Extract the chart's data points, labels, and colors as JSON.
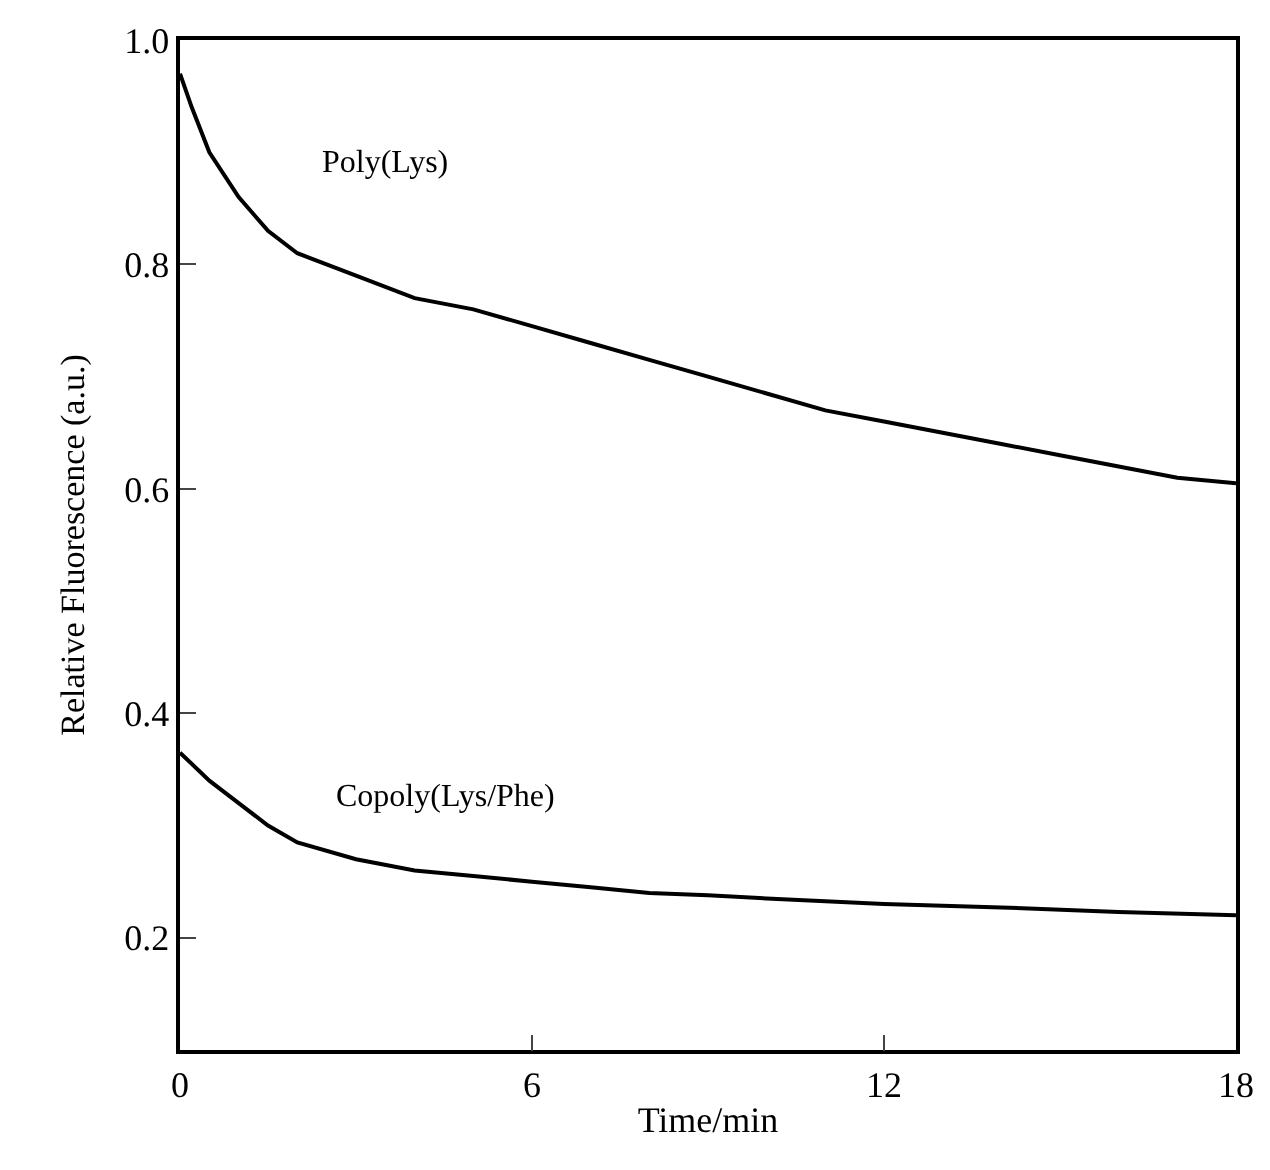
{
  "chart_data": {
    "type": "line",
    "xlabel": "Time/min",
    "ylabel": "Relative Fluorescence (a.u.)",
    "xlim": [
      0,
      18
    ],
    "xticks": [
      0,
      6,
      12,
      18
    ],
    "ylim": [
      0.1,
      1.0
    ],
    "yticks": [
      0.2,
      0.4,
      0.6,
      0.8,
      {
        "value": 1.0,
        "label": "1.0"
      }
    ],
    "marker": "none",
    "line_style": "solid",
    "series": [
      {
        "name": "Poly(Lys)",
        "color": "#000000",
        "x": [
          0,
          0.2,
          0.5,
          1,
          1.5,
          2,
          3,
          4,
          5,
          6,
          7,
          8,
          9,
          10,
          11,
          12,
          13,
          14,
          15,
          16,
          17,
          18
        ],
        "values": [
          0.97,
          0.94,
          0.9,
          0.86,
          0.83,
          0.81,
          0.79,
          0.77,
          0.76,
          0.745,
          0.73,
          0.715,
          0.7,
          0.685,
          0.67,
          0.66,
          0.65,
          0.64,
          0.63,
          0.62,
          0.61,
          0.605
        ]
      },
      {
        "name": "Copoly(Lys/Phe)",
        "color": "#000000",
        "x": [
          0,
          0.5,
          1,
          1.5,
          2,
          3,
          4,
          5,
          6,
          7,
          8,
          9,
          10,
          12,
          14,
          16,
          18
        ],
        "values": [
          0.365,
          0.34,
          0.32,
          0.3,
          0.285,
          0.27,
          0.26,
          0.255,
          0.25,
          0.245,
          0.24,
          0.238,
          0.235,
          0.23,
          0.227,
          0.223,
          0.22
        ]
      }
    ]
  }
}
